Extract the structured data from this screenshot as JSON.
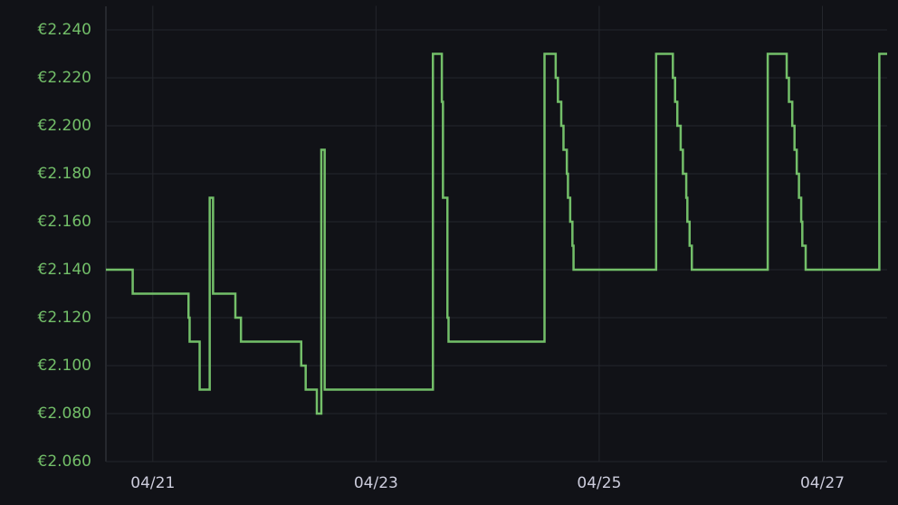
{
  "chart_data": {
    "type": "line",
    "step": "after",
    "color": "#73bf69",
    "grid": true,
    "x": [
      20.58,
      20.82,
      21.32,
      21.33,
      21.42,
      21.51,
      21.54,
      21.74,
      21.79,
      22.33,
      22.37,
      22.47,
      22.51,
      22.54,
      23.51,
      23.59,
      23.6,
      23.64,
      23.65,
      24.51,
      24.61,
      24.63,
      24.66,
      24.68,
      24.71,
      24.72,
      24.74,
      24.76,
      24.77,
      25.51,
      25.66,
      25.68,
      25.7,
      25.73,
      25.75,
      25.78,
      25.79,
      25.81,
      25.83,
      26.51,
      26.68,
      26.7,
      26.73,
      26.75,
      26.77,
      26.79,
      26.81,
      26.82,
      26.85,
      27.51,
      27.58
    ],
    "values": [
      2.14,
      2.13,
      2.12,
      2.11,
      2.09,
      2.17,
      2.13,
      2.12,
      2.11,
      2.1,
      2.09,
      2.08,
      2.19,
      2.09,
      2.23,
      2.21,
      2.17,
      2.12,
      2.11,
      2.23,
      2.22,
      2.21,
      2.2,
      2.19,
      2.18,
      2.17,
      2.16,
      2.15,
      2.14,
      2.23,
      2.22,
      2.21,
      2.2,
      2.19,
      2.18,
      2.17,
      2.16,
      2.15,
      2.14,
      2.23,
      2.22,
      2.21,
      2.2,
      2.19,
      2.18,
      2.17,
      2.16,
      2.15,
      2.14,
      2.23,
      2.23
    ],
    "xlim": [
      20.58,
      27.58
    ],
    "ylim": [
      2.06,
      2.25
    ],
    "xticks": [
      {
        "value": 21,
        "label": "04/21"
      },
      {
        "value": 23,
        "label": "04/23"
      },
      {
        "value": 25,
        "label": "04/25"
      },
      {
        "value": 27,
        "label": "04/27"
      }
    ],
    "yticks": [
      {
        "value": 2.06,
        "label": "€2.060"
      },
      {
        "value": 2.08,
        "label": "€2.080"
      },
      {
        "value": 2.1,
        "label": "€2.100"
      },
      {
        "value": 2.12,
        "label": "€2.120"
      },
      {
        "value": 2.14,
        "label": "€2.140"
      },
      {
        "value": 2.16,
        "label": "€2.160"
      },
      {
        "value": 2.18,
        "label": "€2.180"
      },
      {
        "value": 2.2,
        "label": "€2.200"
      },
      {
        "value": 2.22,
        "label": "€2.220"
      },
      {
        "value": 2.24,
        "label": "€2.240"
      }
    ]
  }
}
